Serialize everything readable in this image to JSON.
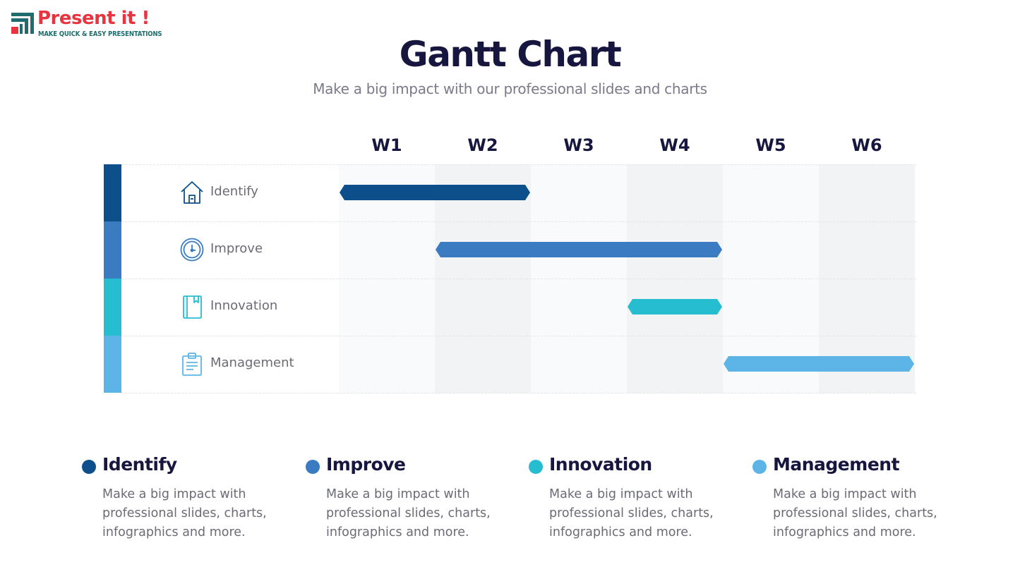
{
  "logo": {
    "title": "Present it !",
    "tagline": "MAKE QUICK & EASY PRESENTATIONS"
  },
  "header": {
    "title": "Gantt Chart",
    "subtitle": "Make a big impact with our professional slides and charts"
  },
  "chart_data": {
    "type": "gantt",
    "columns": [
      "W1",
      "W2",
      "W3",
      "W4",
      "W5",
      "W6"
    ],
    "tasks": [
      {
        "label": "Identify",
        "icon": "home-icon",
        "color": "#0d4f8b",
        "start_week": 1,
        "end_week": 2
      },
      {
        "label": "Improve",
        "icon": "clock-icon",
        "color": "#3a7bc2",
        "start_week": 2,
        "end_week": 4
      },
      {
        "label": "Innovation",
        "icon": "book-icon",
        "color": "#27bdd0",
        "start_week": 4,
        "end_week": 4
      },
      {
        "label": "Management",
        "icon": "clipboard-icon",
        "color": "#5cb5e6",
        "start_week": 5,
        "end_week": 6
      }
    ]
  },
  "legend": [
    {
      "title": "Identify",
      "color": "#0d4f8b",
      "description": "Make a big impact with professional slides, charts, infographics and more."
    },
    {
      "title": "Improve",
      "color": "#3a7bc2",
      "description": "Make a big impact with professional slides, charts, infographics and more."
    },
    {
      "title": "Innovation",
      "color": "#27bdd0",
      "description": "Make a big impact with professional slides, charts, infographics and more."
    },
    {
      "title": "Management",
      "color": "#5cb5e6",
      "description": "Make a big impact with professional slides, charts, infographics and more."
    }
  ],
  "colors": {
    "logo_red": "#e8343f",
    "logo_teal": "#1f6d6e",
    "title_text": "#16163f",
    "muted_text": "#6b6b76"
  }
}
